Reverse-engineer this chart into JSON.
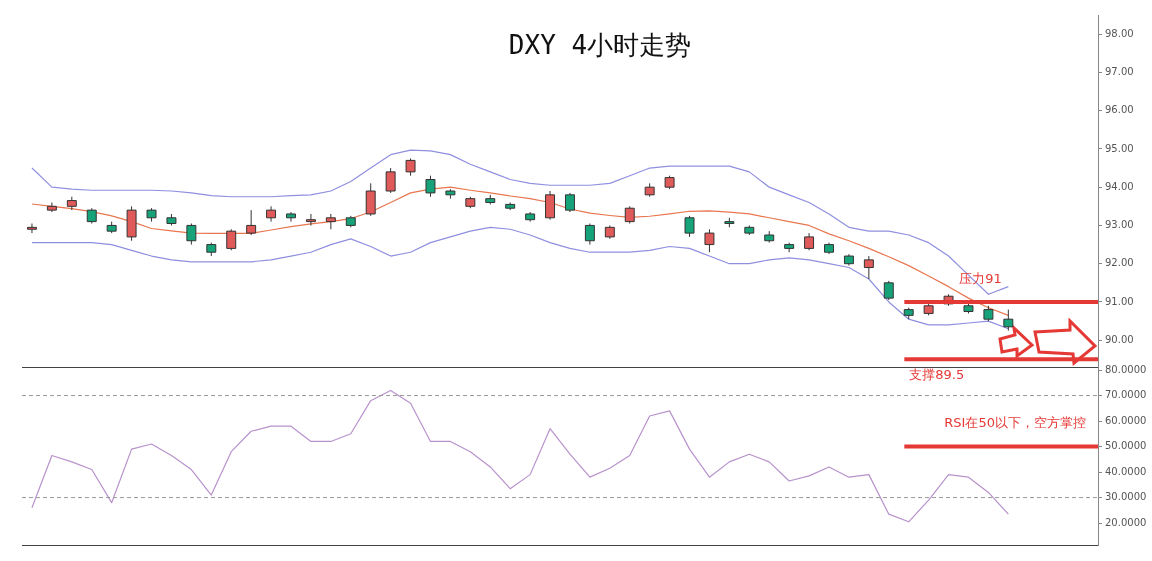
{
  "chart_data": [
    {
      "type": "candlestick",
      "title": "DXY 4小时走势",
      "categories": [
        null,
        null,
        null,
        null,
        null,
        null,
        null,
        null,
        null,
        null,
        null,
        null,
        null,
        null,
        null,
        null,
        null,
        null,
        null,
        null,
        null,
        null,
        null,
        null,
        null,
        null,
        null,
        null,
        null,
        null,
        null,
        null,
        null,
        null,
        null,
        null,
        null,
        null,
        null,
        null,
        null,
        null,
        null,
        null,
        null,
        null,
        null,
        null,
        null,
        null,
        null,
        null,
        null,
        null
      ],
      "ohlc": [
        [
          92.9,
          93.05,
          92.8,
          92.95
        ],
        [
          93.4,
          93.6,
          93.35,
          93.5
        ],
        [
          93.5,
          93.75,
          93.4,
          93.65
        ],
        [
          93.4,
          93.45,
          93.05,
          93.1
        ],
        [
          93.0,
          93.1,
          92.8,
          92.85
        ],
        [
          92.7,
          93.5,
          92.6,
          93.4
        ],
        [
          93.4,
          93.45,
          93.1,
          93.2
        ],
        [
          93.2,
          93.3,
          93.0,
          93.05
        ],
        [
          93.0,
          93.05,
          92.5,
          92.6
        ],
        [
          92.5,
          92.55,
          92.2,
          92.3
        ],
        [
          92.4,
          92.9,
          92.35,
          92.85
        ],
        [
          92.8,
          93.4,
          92.75,
          93.0
        ],
        [
          93.2,
          93.5,
          93.1,
          93.4
        ],
        [
          93.3,
          93.35,
          93.1,
          93.2
        ],
        [
          93.1,
          93.3,
          93.0,
          93.15
        ],
        [
          93.1,
          93.3,
          92.9,
          93.2
        ],
        [
          93.2,
          93.25,
          92.95,
          93.0
        ],
        [
          93.3,
          94.1,
          93.25,
          93.9
        ],
        [
          93.9,
          94.5,
          93.85,
          94.4
        ],
        [
          94.4,
          94.75,
          94.3,
          94.7
        ],
        [
          94.2,
          94.3,
          93.75,
          93.85
        ],
        [
          93.9,
          93.95,
          93.7,
          93.8
        ],
        [
          93.5,
          93.75,
          93.45,
          93.7
        ],
        [
          93.7,
          93.8,
          93.55,
          93.6
        ],
        [
          93.55,
          93.6,
          93.4,
          93.45
        ],
        [
          93.3,
          93.35,
          93.1,
          93.15
        ],
        [
          93.2,
          93.9,
          93.15,
          93.8
        ],
        [
          93.8,
          93.85,
          93.35,
          93.4
        ],
        [
          93.0,
          93.05,
          92.5,
          92.6
        ],
        [
          92.7,
          93.0,
          92.65,
          92.95
        ],
        [
          93.1,
          93.5,
          93.05,
          93.45
        ],
        [
          93.8,
          94.1,
          93.75,
          94.0
        ],
        [
          94.0,
          94.3,
          93.95,
          94.25
        ],
        [
          93.2,
          93.25,
          92.7,
          92.8
        ],
        [
          92.5,
          92.9,
          92.3,
          92.8
        ],
        [
          93.1,
          93.2,
          92.95,
          93.05
        ],
        [
          92.95,
          93.0,
          92.75,
          92.8
        ],
        [
          92.75,
          92.85,
          92.55,
          92.6
        ],
        [
          92.5,
          92.55,
          92.3,
          92.4
        ],
        [
          92.4,
          92.8,
          92.35,
          92.7
        ],
        [
          92.5,
          92.55,
          92.25,
          92.3
        ],
        [
          92.2,
          92.25,
          91.95,
          92.0
        ],
        [
          91.9,
          92.2,
          91.6,
          92.1
        ],
        [
          91.5,
          91.55,
          91.05,
          91.1
        ],
        [
          90.8,
          90.85,
          90.55,
          90.65
        ],
        [
          90.7,
          90.95,
          90.65,
          90.9
        ],
        [
          90.95,
          91.2,
          90.9,
          91.15
        ],
        [
          90.9,
          91.0,
          90.7,
          90.75
        ],
        [
          90.8,
          90.9,
          90.5,
          90.55
        ],
        [
          90.55,
          90.8,
          90.25,
          90.35
        ],
        null,
        null,
        null,
        null
      ],
      "series": [
        {
          "type": "line",
          "color": "#8f8fe0",
          "values": [
            94.5,
            94.0,
            93.95,
            93.92,
            93.92,
            93.92,
            93.92,
            93.9,
            93.85,
            93.78,
            93.75,
            93.75,
            93.75,
            93.78,
            93.8,
            93.9,
            94.15,
            94.5,
            94.85,
            94.97,
            94.95,
            94.85,
            94.6,
            94.4,
            94.2,
            94.1,
            94.05,
            94.05,
            94.05,
            94.1,
            94.3,
            94.5,
            94.55,
            94.55,
            94.55,
            94.55,
            94.4,
            94.0,
            93.8,
            93.6,
            93.3,
            92.95,
            92.85,
            92.85,
            92.75,
            92.55,
            92.2,
            91.7,
            91.2,
            91.4,
            null,
            null,
            null,
            null
          ]
        },
        {
          "type": "line",
          "color": "#e8764f",
          "values": [
            93.56,
            93.5,
            93.44,
            93.36,
            93.25,
            93.1,
            92.92,
            92.86,
            92.8,
            92.79,
            92.79,
            92.79,
            92.88,
            92.97,
            93.04,
            93.1,
            93.18,
            93.35,
            93.6,
            93.85,
            93.95,
            94.0,
            93.92,
            93.85,
            93.77,
            93.7,
            93.6,
            93.43,
            93.32,
            93.26,
            93.21,
            93.24,
            93.3,
            93.37,
            93.38,
            93.35,
            93.3,
            93.2,
            93.1,
            93.0,
            92.78,
            92.6,
            92.4,
            92.18,
            91.95,
            91.68,
            91.4,
            91.1,
            90.85,
            90.65,
            null,
            null,
            null,
            null
          ]
        },
        {
          "type": "line",
          "color": "#8f8fe0",
          "values": [
            92.55,
            92.55,
            92.55,
            92.55,
            92.5,
            92.35,
            92.2,
            92.1,
            92.05,
            92.05,
            92.05,
            92.05,
            92.1,
            92.2,
            92.3,
            92.5,
            92.65,
            92.45,
            92.2,
            92.3,
            92.55,
            92.7,
            92.85,
            92.95,
            92.9,
            92.75,
            92.55,
            92.4,
            92.3,
            92.3,
            92.3,
            92.35,
            92.45,
            92.4,
            92.2,
            92.0,
            92.0,
            92.1,
            92.15,
            92.1,
            92.0,
            91.9,
            91.6,
            91.0,
            90.55,
            90.4,
            90.4,
            90.45,
            90.5,
            90.3,
            null,
            null,
            null,
            null
          ]
        }
      ],
      "ylim": [
        89.3,
        98.5
      ],
      "yticks": [
        {
          "value": 90,
          "label": "90.00"
        },
        {
          "value": 91,
          "label": "91.00"
        },
        {
          "value": 92,
          "label": "92.00"
        },
        {
          "value": 93,
          "label": "93.00"
        },
        {
          "value": 94,
          "label": "94.00"
        },
        {
          "value": 95,
          "label": "95.00"
        },
        {
          "value": 96,
          "label": "96.00"
        },
        {
          "value": 97,
          "label": "97.00"
        },
        {
          "value": 98,
          "label": "98.00"
        }
      ],
      "tick_labels": "y",
      "ref_lines": [
        {
          "axis": "y",
          "value": 91,
          "label": "压力91",
          "color": "#e53935"
        },
        {
          "axis": "y",
          "value": 89.5,
          "label": "支撑89.5",
          "color": "#e53935"
        }
      ]
    },
    {
      "type": "line",
      "color": "#b892cc",
      "categories": [
        null,
        null,
        null,
        null,
        null,
        null,
        null,
        null,
        null,
        null,
        null,
        null,
        null,
        null,
        null,
        null,
        null,
        null,
        null,
        null,
        null,
        null,
        null,
        null,
        null,
        null,
        null,
        null,
        null,
        null,
        null,
        null,
        null,
        null,
        null,
        null,
        null,
        null,
        null,
        null,
        null,
        null,
        null,
        null,
        null,
        null,
        null,
        null,
        null,
        null,
        null,
        null,
        null,
        null
      ],
      "values": [
        26,
        46.5,
        44,
        41,
        28,
        49,
        51,
        46.5,
        41,
        31,
        48,
        56,
        58,
        58,
        52,
        52,
        55,
        68,
        72,
        67,
        52,
        52,
        48,
        42,
        33.5,
        39,
        57,
        47,
        38,
        41.5,
        46.5,
        62,
        64,
        49,
        38,
        44,
        47,
        44,
        36.5,
        38.5,
        42,
        38,
        39,
        23.5,
        20.5,
        29,
        39,
        38,
        32,
        23.5,
        null,
        null,
        null,
        null
      ],
      "ylim": [
        11.4,
        81.2
      ],
      "yticks": [
        {
          "value": 20,
          "label": "20.0000"
        },
        {
          "value": 30,
          "label": "30.0000"
        },
        {
          "value": 40,
          "label": "40.0000"
        },
        {
          "value": 50,
          "label": "50.0000"
        },
        {
          "value": 60,
          "label": "60.0000"
        },
        {
          "value": 70,
          "label": "70.0000"
        },
        {
          "value": 80,
          "label": "80.0000"
        }
      ],
      "tick_labels": "y",
      "ref_lines": [
        {
          "axis": "y",
          "value": 70,
          "color": "#999999",
          "line_style": "dashed"
        },
        {
          "axis": "y",
          "value": 30,
          "color": "#999999",
          "line_style": "dashed"
        },
        {
          "axis": "y",
          "value": 50,
          "label": "RSI在50以下，空方掌控",
          "color": "#e53935"
        }
      ]
    }
  ]
}
